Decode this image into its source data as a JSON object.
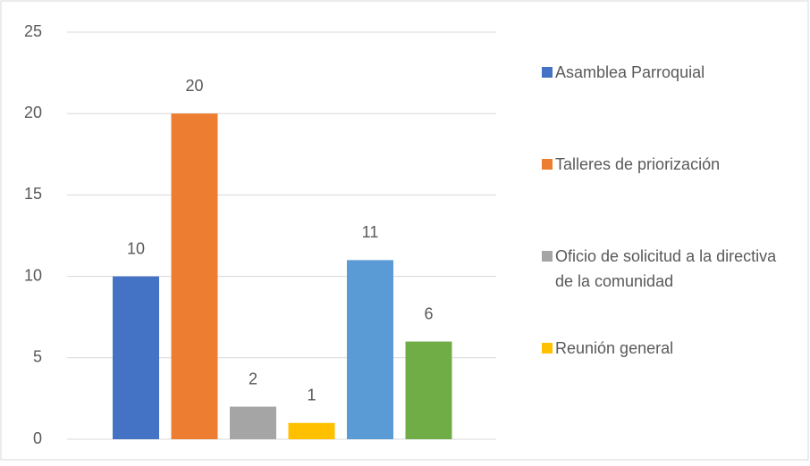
{
  "chart_data": {
    "type": "bar",
    "categories": [
      null
    ],
    "series": [
      {
        "name": "Asamblea Parroquial",
        "color": "#4472c4",
        "values": [
          10
        ]
      },
      {
        "name": "Talleres de priorización",
        "color": "#ed7d31",
        "values": [
          20
        ]
      },
      {
        "name": "Oficio de solicitud a la directiva de la comunidad",
        "color": "#a5a5a5",
        "values": [
          2
        ]
      },
      {
        "name": "Reunión general",
        "color": "#ffc000",
        "values": [
          1
        ]
      },
      {
        "color": "#5b9bd5",
        "values": [
          11
        ]
      },
      {
        "color": "#70ad47",
        "values": [
          6
        ]
      }
    ],
    "ylim": [
      0,
      25
    ],
    "yticks": [
      0,
      5,
      10,
      15,
      20,
      25
    ],
    "grid": true,
    "legend": "right"
  }
}
